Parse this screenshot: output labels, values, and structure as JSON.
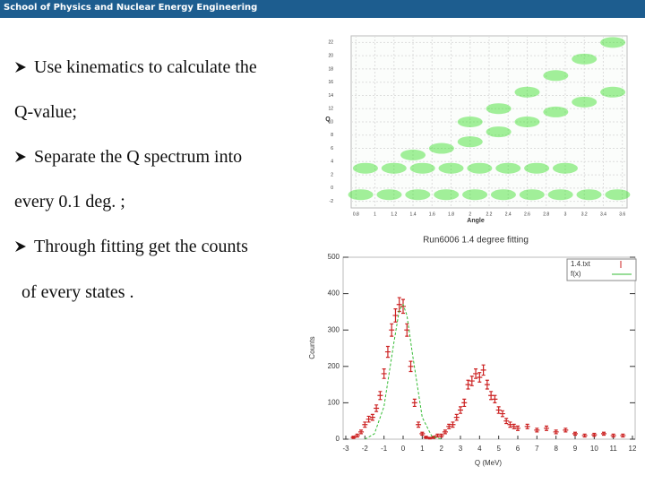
{
  "header": {
    "title": "School of Physics and Nuclear Energy Engineering"
  },
  "bullets": [
    {
      "text": "Use kinematics to calculate the",
      "arrow": true
    },
    {
      "text": "Q-value;",
      "arrow": false
    },
    {
      "text": "Separate the Q spectrum into",
      "arrow": true
    },
    {
      "text": "every 0.1 deg. ;",
      "arrow": false
    },
    {
      "text": "Through fitting get the counts",
      "arrow": true
    },
    {
      "text": "of every states .",
      "arrow": false
    }
  ],
  "chart_data": [
    {
      "type": "scatter",
      "x_label": "Angle",
      "y_label": "Q",
      "color": "#33dd22",
      "grid": true,
      "xlim": [
        0.75,
        3.65
      ],
      "ylim": [
        -3,
        23
      ],
      "xticks": [
        0.8,
        1.0,
        1.2,
        1.4,
        1.6,
        1.8,
        2.0,
        2.2,
        2.4,
        2.6,
        2.8,
        3.0,
        3.2,
        3.4,
        3.6
      ],
      "yticks": [
        -2,
        0,
        2,
        4,
        6,
        8,
        10,
        12,
        14,
        16,
        18,
        20,
        22
      ],
      "x": [
        0.85,
        1.15,
        1.45,
        1.75,
        2.05,
        2.35,
        2.65,
        2.95,
        3.25,
        3.55,
        0.9,
        1.2,
        1.5,
        1.8,
        2.1,
        2.4,
        2.7,
        3.0,
        1.4,
        1.7,
        2.0,
        2.3,
        2.6,
        2.9,
        3.2,
        3.5,
        2.0,
        2.3,
        2.6,
        2.9,
        3.2,
        3.5
      ],
      "values": [
        -1,
        -1,
        -1,
        -1,
        -1,
        -1,
        -1,
        -1,
        -1,
        -1,
        3,
        3,
        3,
        3,
        3,
        3,
        3,
        3,
        5,
        6,
        7,
        8.5,
        10,
        11.5,
        13,
        14.5,
        10,
        12,
        14.5,
        17,
        19.5,
        22
      ]
    },
    {
      "type": "errorbar",
      "title": "Run6006 1.4 degree fitting",
      "x_label": "Q (MeV)",
      "y_label": "Counts",
      "xlim": [
        -3,
        12
      ],
      "ylim": [
        0,
        500
      ],
      "xticks": [
        -3,
        -2,
        -1,
        0,
        1,
        2,
        3,
        4,
        5,
        6,
        7,
        8,
        9,
        10,
        11,
        12
      ],
      "yticks": [
        0,
        100,
        200,
        300,
        400,
        500
      ],
      "legend": "upper right",
      "series": [
        {
          "name": "1.4.txt",
          "color": "#cc2222",
          "x": [
            -2.6,
            -2.4,
            -2.2,
            -2.0,
            -1.8,
            -1.6,
            -1.4,
            -1.2,
            -1.0,
            -0.8,
            -0.6,
            -0.4,
            -0.2,
            0.0,
            0.2,
            0.4,
            0.6,
            0.8,
            1.0,
            1.2,
            1.4,
            1.6,
            1.8,
            2.0,
            2.2,
            2.4,
            2.6,
            2.8,
            3.0,
            3.2,
            3.4,
            3.6,
            3.8,
            4.0,
            4.2,
            4.4,
            4.6,
            4.8,
            5.0,
            5.2,
            5.4,
            5.6,
            5.8,
            6.0,
            6.5,
            7.0,
            7.5,
            8.0,
            8.5,
            9.0,
            9.5,
            10.0,
            10.5,
            11.0,
            11.5
          ],
          "values": [
            5,
            10,
            20,
            40,
            55,
            60,
            85,
            120,
            180,
            240,
            300,
            340,
            370,
            365,
            300,
            200,
            100,
            40,
            15,
            5,
            3,
            5,
            10,
            10,
            20,
            35,
            40,
            60,
            80,
            100,
            150,
            160,
            180,
            170,
            190,
            150,
            120,
            110,
            80,
            70,
            50,
            40,
            35,
            30,
            35,
            25,
            30,
            20,
            25,
            15,
            10,
            12,
            15,
            10,
            10
          ],
          "errors": [
            3,
            4,
            5,
            7,
            8,
            8,
            9,
            11,
            13,
            15,
            17,
            18,
            19,
            19,
            17,
            14,
            10,
            7,
            4,
            3,
            2,
            3,
            4,
            4,
            5,
            6,
            7,
            8,
            9,
            10,
            12,
            13,
            13,
            13,
            14,
            12,
            11,
            10,
            9,
            8,
            7,
            7,
            6,
            6,
            6,
            5,
            6,
            5,
            5,
            4,
            4,
            4,
            4,
            4,
            4
          ]
        },
        {
          "name": "f(x)",
          "color": "#33bb33",
          "x": [
            -2.0,
            -1.5,
            -1.0,
            -0.5,
            -0.2,
            0.0,
            0.2,
            0.5,
            1.0,
            1.5,
            2.0
          ],
          "values": [
            0,
            15,
            90,
            260,
            355,
            370,
            340,
            230,
            60,
            8,
            0
          ]
        }
      ]
    }
  ]
}
